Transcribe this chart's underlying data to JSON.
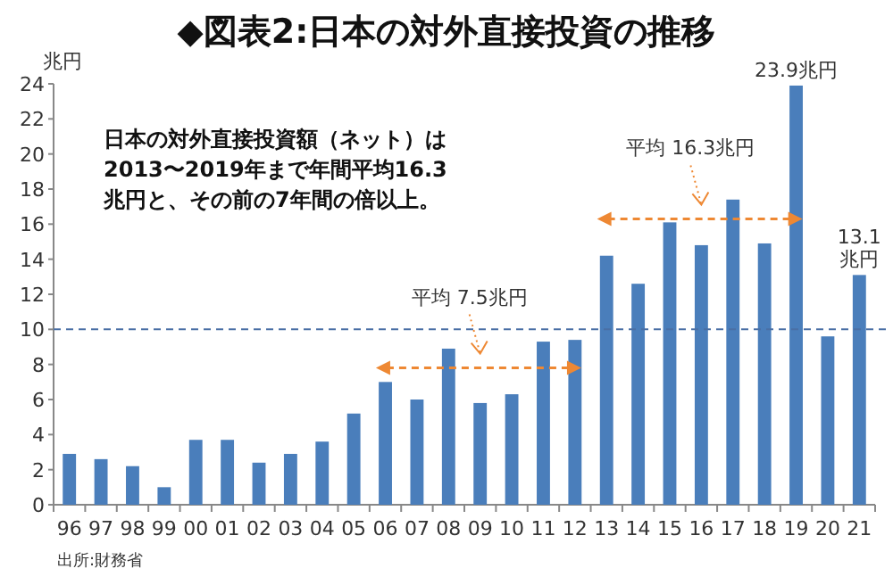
{
  "chart_data": {
    "type": "bar",
    "title": "◆図表2:日本の対外直接投資の推移",
    "ylabel": "兆円",
    "categories": [
      "96",
      "97",
      "98",
      "99",
      "00",
      "01",
      "02",
      "03",
      "04",
      "05",
      "06",
      "07",
      "08",
      "09",
      "10",
      "11",
      "12",
      "13",
      "14",
      "15",
      "16",
      "17",
      "18",
      "19",
      "20",
      "21"
    ],
    "values": [
      2.9,
      2.6,
      2.2,
      1.0,
      3.7,
      3.7,
      2.4,
      2.9,
      3.6,
      5.2,
      7.0,
      6.0,
      8.9,
      5.8,
      6.3,
      9.3,
      9.4,
      14.2,
      12.6,
      16.1,
      14.8,
      17.4,
      14.9,
      23.9,
      9.6,
      13.1
    ],
    "value_labels": [
      null,
      null,
      null,
      null,
      null,
      null,
      null,
      null,
      null,
      null,
      null,
      null,
      null,
      null,
      null,
      null,
      null,
      null,
      null,
      null,
      null,
      null,
      null,
      "23.9兆円",
      null,
      "13.1兆円"
    ],
    "color": "#4a7ebb",
    "ylim": [
      0,
      24
    ],
    "yticks": [
      0,
      2,
      4,
      6,
      8,
      10,
      12,
      14,
      16,
      18,
      20,
      22,
      24
    ],
    "ref_lines": [
      {
        "axis": "y",
        "value": 10,
        "color": "#4a6fa5",
        "line_style": "dashed"
      }
    ],
    "annotations": [
      "日本の対外直接投資額（ネット）は2013〜2019年まで年間平均16.3兆円と、その前の7年間の倍以上。",
      "平均 7.5兆円",
      "平均 16.3兆円",
      "出所:財務省"
    ],
    "grid": false
  }
}
